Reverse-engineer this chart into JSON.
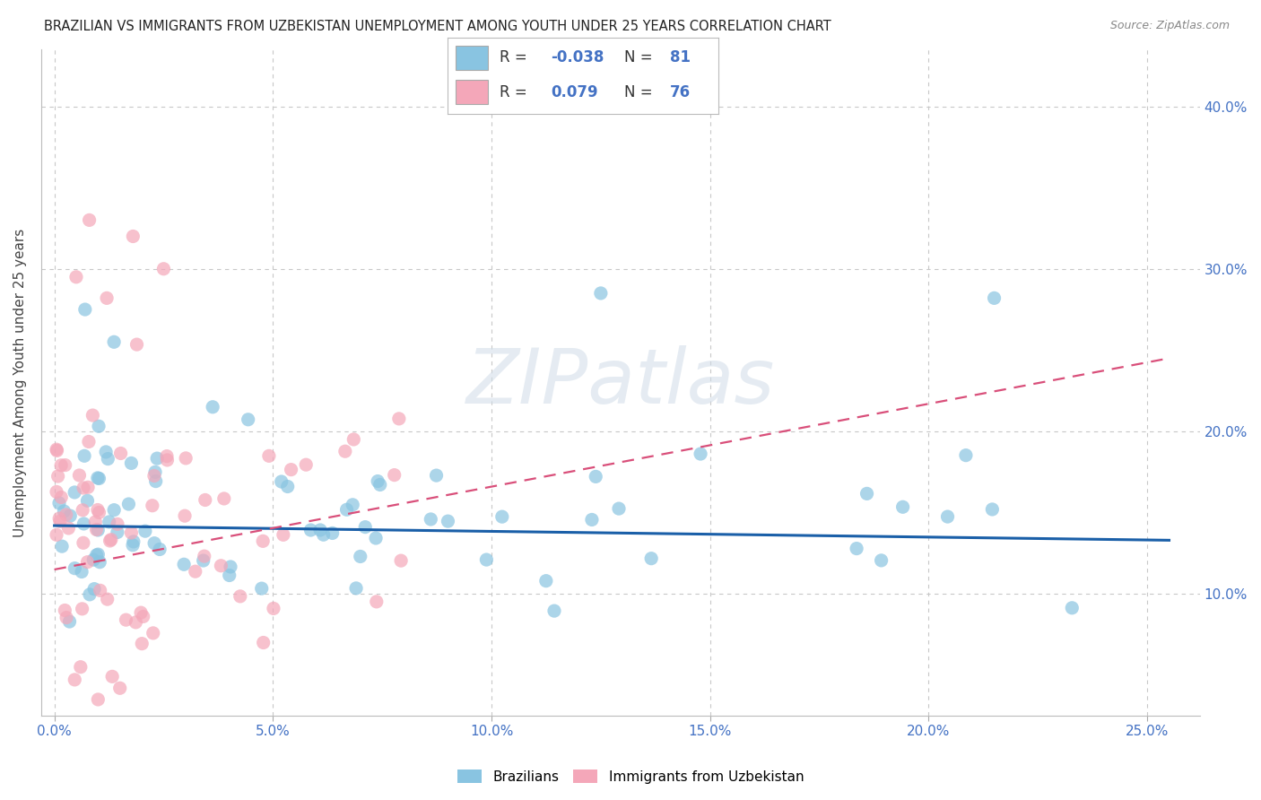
{
  "title": "BRAZILIAN VS IMMIGRANTS FROM UZBEKISTAN UNEMPLOYMENT AMONG YOUTH UNDER 25 YEARS CORRELATION CHART",
  "source": "Source: ZipAtlas.com",
  "ylabel": "Unemployment Among Youth under 25 years",
  "x_tick_values": [
    0.0,
    0.05,
    0.1,
    0.15,
    0.2,
    0.25
  ],
  "y_tick_values": [
    0.1,
    0.2,
    0.3,
    0.4
  ],
  "xlim": [
    -0.003,
    0.262
  ],
  "ylim": [
    0.025,
    0.435
  ],
  "blue_color": "#89c4e1",
  "pink_color": "#f4a7b9",
  "blue_line_color": "#1a5fa8",
  "pink_line_color": "#d94f7a",
  "tick_color": "#4472c4",
  "watermark_text": "ZIPatlas",
  "legend_r_blue": "-0.038",
  "legend_n_blue": "81",
  "legend_r_pink": "0.079",
  "legend_n_pink": "76",
  "legend_label_blue": "Brazilians",
  "legend_label_pink": "Immigrants from Uzbekistan",
  "background_color": "#ffffff",
  "grid_color": "#c8c8c8",
  "blue_trend_x0": 0.0,
  "blue_trend_y0": 0.142,
  "blue_trend_x1": 0.255,
  "blue_trend_y1": 0.133,
  "pink_trend_x0": 0.0,
  "pink_trend_y0": 0.115,
  "pink_trend_x1": 0.255,
  "pink_trend_y1": 0.245
}
